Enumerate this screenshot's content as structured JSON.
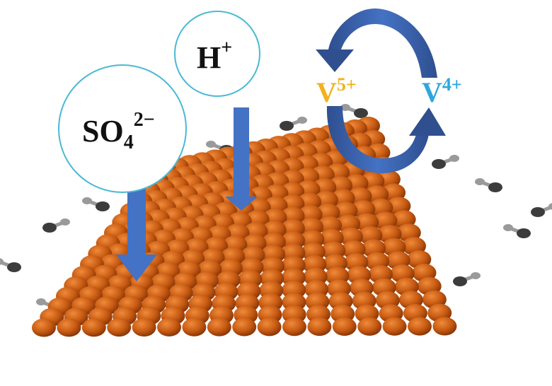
{
  "ions": {
    "sulfate": {
      "base": "SO",
      "sub": "4",
      "sup": "2−"
    },
    "proton": {
      "base": "H",
      "sup": "+"
    }
  },
  "vanadium": {
    "oxidized": {
      "base": "V",
      "sup": "5+",
      "color": "#f2b11d"
    },
    "reduced": {
      "base": "V",
      "sup": "4+",
      "color": "#2ea7dc"
    }
  },
  "colors": {
    "arrow": "#4472c4",
    "arrow_dark": "#2f4f8f",
    "circle_stroke": "#49b9d4",
    "sphere": "#c65a12",
    "sphere_highlight": "#f08a3a",
    "sphere_shadow": "#7a2e06",
    "carbon": "#3c3c3c",
    "hydrogen": "#9a9a9a"
  }
}
